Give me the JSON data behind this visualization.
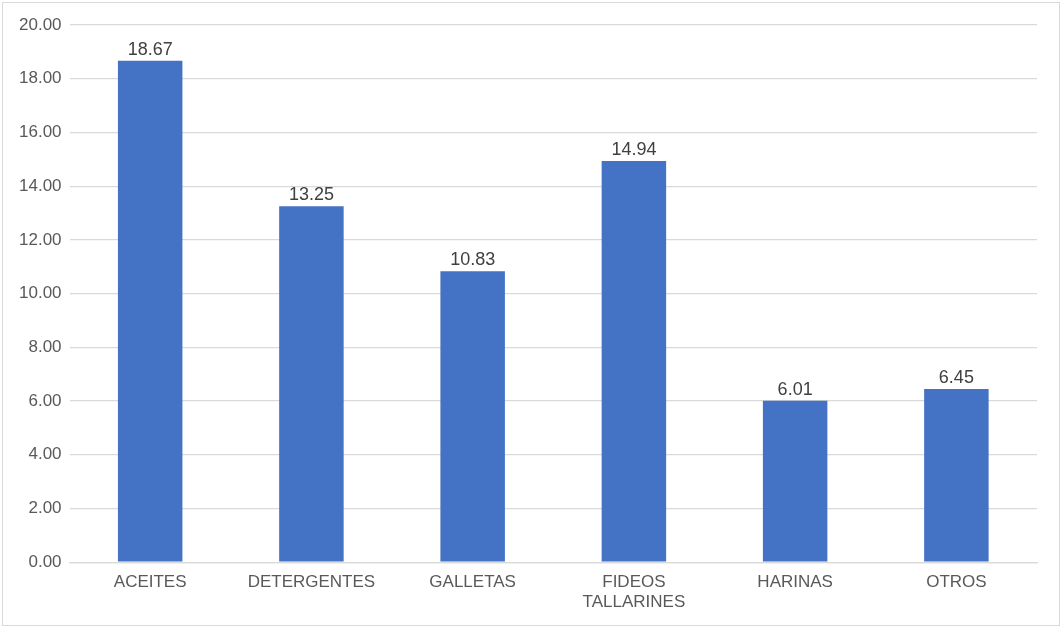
{
  "chart_data": {
    "type": "bar",
    "categories": [
      "ACEITES",
      "DETERGENTES",
      "GALLETAS",
      "FIDEOS TALLARINES",
      "HARINAS",
      "OTROS"
    ],
    "values": [
      18.67,
      13.25,
      10.83,
      14.94,
      6.01,
      6.45
    ],
    "color": "#4472c4",
    "ylim": [
      0,
      20
    ],
    "yticks": [
      {
        "value": 0,
        "label": "0.00"
      },
      {
        "value": 2,
        "label": "2.00"
      },
      {
        "value": 4,
        "label": "4.00"
      },
      {
        "value": 6,
        "label": "6.00"
      },
      {
        "value": 8,
        "label": "8.00"
      },
      {
        "value": 10,
        "label": "10.00"
      },
      {
        "value": 12,
        "label": "12.00"
      },
      {
        "value": 14,
        "label": "14.00"
      },
      {
        "value": 16,
        "label": "16.00"
      },
      {
        "value": 18,
        "label": "18.00"
      },
      {
        "value": 20,
        "label": "20.00"
      }
    ],
    "grid": "y",
    "data_labels": true
  }
}
